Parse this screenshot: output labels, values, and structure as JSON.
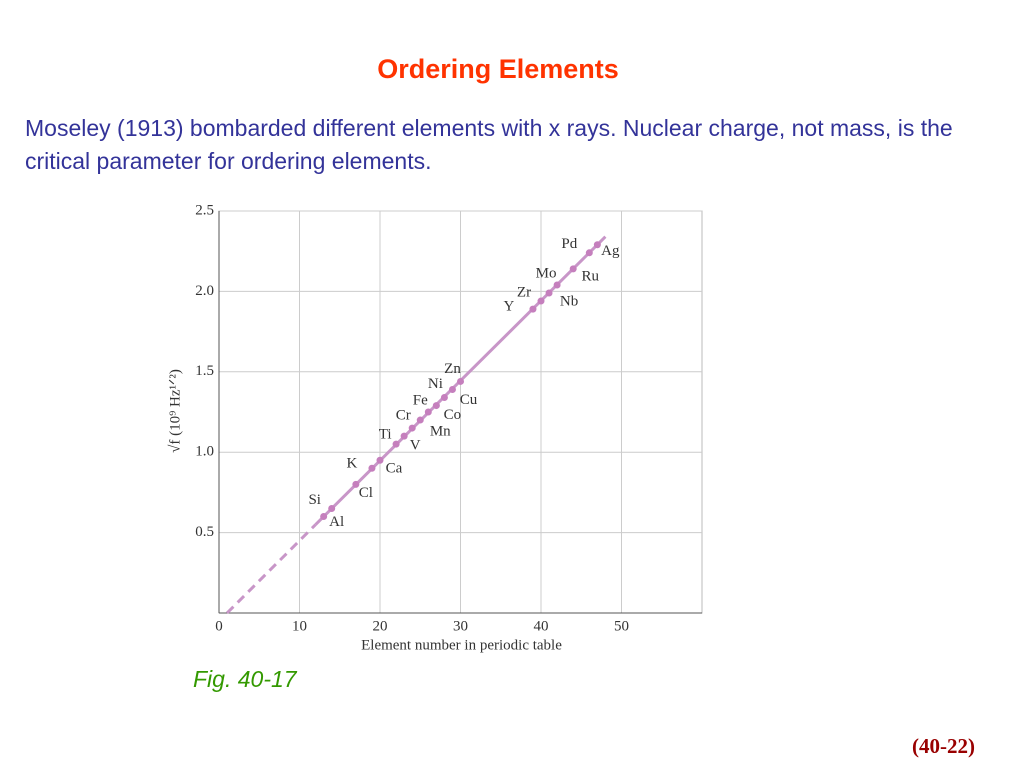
{
  "title": "Ordering Elements",
  "body": "Moseley (1913) bombarded different elements with x rays. Nuclear charge, not mass, is the critical parameter for ordering elements.",
  "caption": "Fig. 40-17",
  "page_number": "(40-22)",
  "chart_data": {
    "type": "scatter",
    "x_label": "Element number in periodic table",
    "y_label": "√f  (10⁹ Hz¹ᐟ²)",
    "x": [
      13,
      14,
      17,
      19,
      20,
      22,
      23,
      24,
      25,
      26,
      27,
      28,
      29,
      30,
      39,
      40,
      41,
      42,
      44,
      46,
      47
    ],
    "values": [
      0.6,
      0.65,
      0.8,
      0.9,
      0.95,
      1.05,
      1.1,
      1.15,
      1.2,
      1.25,
      1.29,
      1.34,
      1.39,
      1.44,
      1.89,
      1.94,
      1.99,
      2.04,
      2.14,
      2.24,
      2.29
    ],
    "point_labels": [
      "Al",
      "Si",
      "Cl",
      "K",
      "Ca",
      "Ti",
      "V",
      "Cr",
      "Mn",
      "Fe",
      "Co",
      "Ni",
      "Cu",
      "Zn",
      "Y",
      "Zr",
      "Nb",
      "Mo",
      "Ru",
      "Pd",
      "Ag"
    ],
    "color": "#c57fbd",
    "lines": [
      {
        "style": "dashed",
        "color": "#c896c8",
        "x": [
          1,
          12
        ],
        "values": [
          0,
          0.55
        ]
      },
      {
        "style": "solid",
        "color": "#c896c8",
        "x": [
          12,
          48
        ],
        "values": [
          0.55,
          2.34
        ]
      }
    ],
    "xlim": [
      0,
      60
    ],
    "ylim": [
      0,
      2.5
    ],
    "xticks": [
      0,
      10,
      20,
      30,
      40,
      50
    ],
    "yticks": [
      0.5,
      {
        "value": 1,
        "label": "1.0"
      },
      1.5,
      {
        "value": 2,
        "label": "2.0"
      },
      2.5
    ],
    "grid": true
  }
}
